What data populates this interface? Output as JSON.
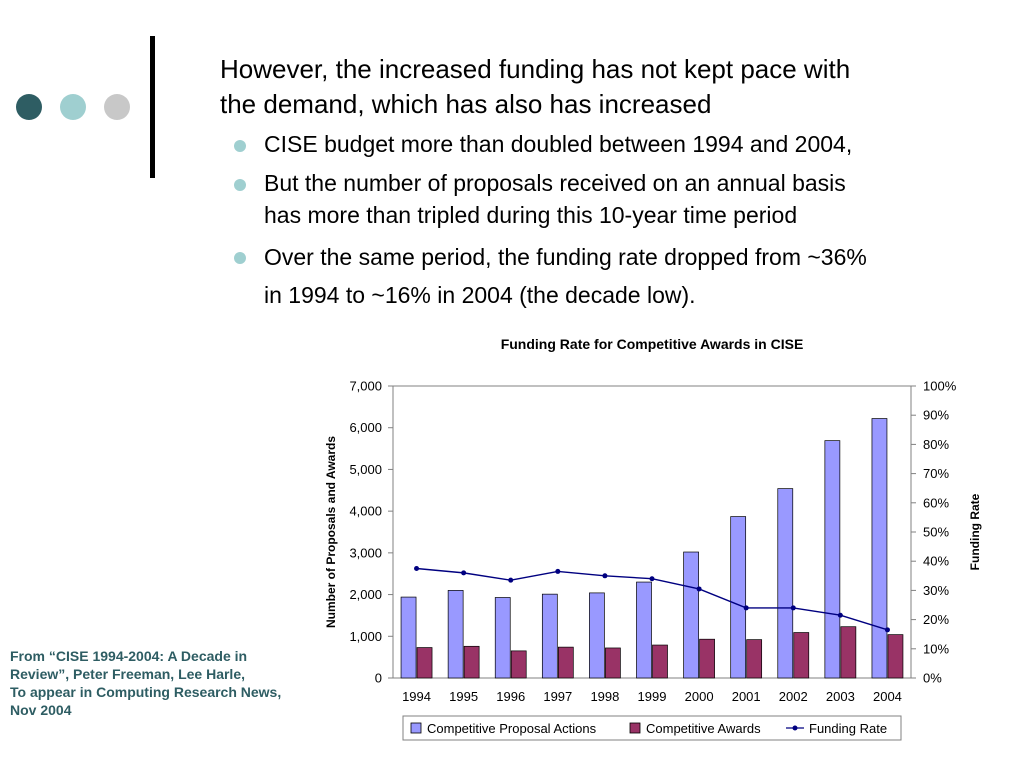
{
  "slide": {
    "heading_lines": [
      "However, the increased funding has not kept pace with",
      "the demand, which has also has increased"
    ],
    "bullets": [
      [
        "CISE budget more than doubled between 1994 and 2004,"
      ],
      [
        "But the number of proposals received on an annual basis",
        "has more than tripled during this 10-year time period"
      ],
      [
        "Over the same period, the funding rate dropped from ~36%",
        "in 1994 to ~16% in 2004 (the decade low)."
      ]
    ],
    "source_lines": [
      "From “CISE 1994-2004: A Decade in",
      "Review”, Peter Freeman, Lee Harle,",
      "To appear in Computing Research News,",
      "Nov 2004"
    ]
  },
  "colors": {
    "dot_dark": "#2e5d63",
    "dot_mid": "#9fcfd0",
    "dot_light": "#c8c8c8",
    "bullet": "#9fcfd0",
    "source_text": "#2e5d63",
    "proposals_fill": "#9999ff",
    "awards_fill": "#993366",
    "rate_line": "#000080"
  },
  "chart_data": {
    "type": "bar",
    "title": "Funding Rate for Competitive Awards in CISE",
    "ylabel": "Number of Proposals and Awards",
    "y2label": "Funding Rate",
    "ylim": [
      0,
      7000
    ],
    "y2lim": [
      0,
      1
    ],
    "yticks": [
      "0",
      "1,000",
      "2,000",
      "3,000",
      "4,000",
      "5,000",
      "6,000",
      "7,000"
    ],
    "y2ticks": [
      "0%",
      "10%",
      "20%",
      "30%",
      "40%",
      "50%",
      "60%",
      "70%",
      "80%",
      "90%",
      "100%"
    ],
    "categories": [
      "1994",
      "1995",
      "1996",
      "1997",
      "1998",
      "1999",
      "2000",
      "2001",
      "2002",
      "2003",
      "2004"
    ],
    "series": [
      {
        "name": "Competitive Proposal Actions",
        "kind": "bar",
        "axis": "left",
        "values": [
          1940,
          2100,
          1930,
          2010,
          2040,
          2300,
          3020,
          3870,
          4540,
          5690,
          6220
        ]
      },
      {
        "name": "Competitive Awards",
        "kind": "bar",
        "axis": "left",
        "values": [
          730,
          760,
          650,
          740,
          720,
          790,
          930,
          920,
          1090,
          1230,
          1040
        ]
      },
      {
        "name": "Funding Rate",
        "kind": "line",
        "axis": "right",
        "values": [
          0.375,
          0.36,
          0.335,
          0.365,
          0.35,
          0.34,
          0.305,
          0.24,
          0.24,
          0.215,
          0.165
        ]
      }
    ],
    "legend": "bottom",
    "grid": false
  }
}
